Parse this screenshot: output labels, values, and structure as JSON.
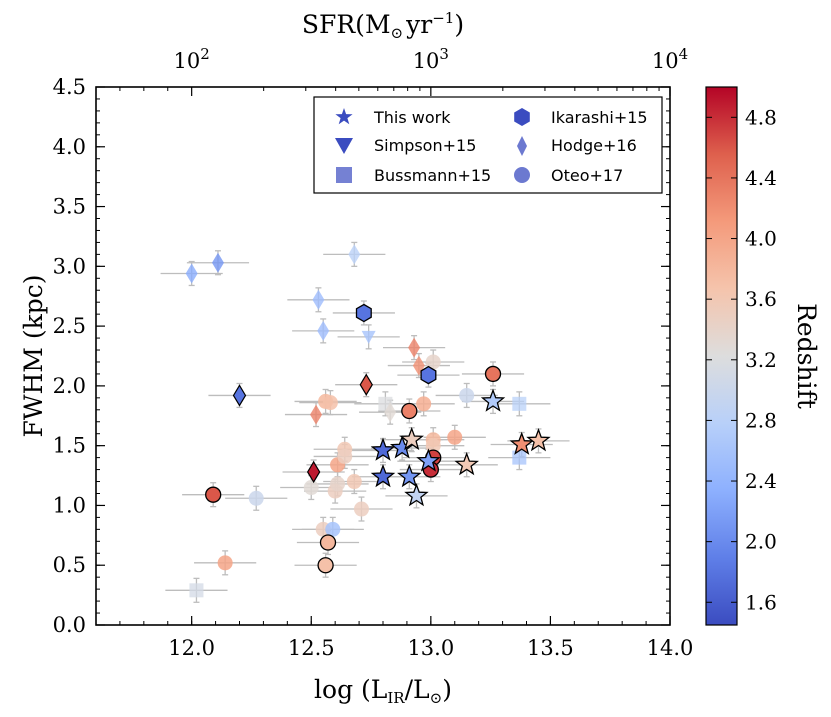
{
  "chart_data": {
    "type": "scatter",
    "xlabel": "log (L_IR/L_⊙)",
    "xlabel_parts": {
      "pre": "log (L",
      "sub": "IR",
      "mid": "/L",
      "sub2": "⊙",
      "post": ")"
    },
    "ylabel": "FWHM (kpc)",
    "top_xlabel": "SFR(M_⊙ yr^-1)",
    "top_xlabel_parts": {
      "pre": "SFR(M",
      "sub": "⊙",
      "mid": "yr",
      "sup": "−1",
      "post": ")"
    },
    "colorbar_label": "Redshift",
    "xlim": [
      11.6,
      14.0
    ],
    "ylim": [
      0.0,
      4.5
    ],
    "x_ticks": [
      12.0,
      12.5,
      13.0,
      13.5,
      14.0
    ],
    "x_tick_labels": [
      "12.0",
      "12.5",
      "13.0",
      "13.5",
      "14.0"
    ],
    "y_ticks": [
      0.0,
      0.5,
      1.0,
      1.5,
      2.0,
      2.5,
      3.0,
      3.5,
      4.0,
      4.5
    ],
    "y_tick_labels": [
      "0.0",
      "0.5",
      "1.0",
      "1.5",
      "2.0",
      "2.5",
      "3.0",
      "3.5",
      "4.0",
      "4.5"
    ],
    "top_ticks": [
      12.0,
      13.0,
      14.0
    ],
    "top_tick_base": [
      "10",
      "10",
      "10"
    ],
    "top_tick_exp": [
      "2",
      "3",
      "4"
    ],
    "colorbar_range": [
      1.45,
      5.0
    ],
    "colorbar_ticks": [
      1.6,
      2.0,
      2.4,
      2.8,
      3.2,
      3.6,
      4.0,
      4.4,
      4.8
    ],
    "colorbar_tick_labels": [
      "1.6",
      "2.0",
      "2.4",
      "2.8",
      "3.2",
      "3.6",
      "4.0",
      "4.4",
      "4.8"
    ],
    "legend": {
      "position": "top-right",
      "entries": [
        {
          "label": "This work",
          "marker": "star"
        },
        {
          "label": "Simpson+15",
          "marker": "triangle"
        },
        {
          "label": "Bussmann+15",
          "marker": "square"
        },
        {
          "label": "Ikarashi+15",
          "marker": "hexagon"
        },
        {
          "label": "Hodge+16",
          "marker": "diamond"
        },
        {
          "label": "Oteo+17",
          "marker": "circle"
        }
      ]
    },
    "series": [
      {
        "name": "This work",
        "marker": "star",
        "points": [
          {
            "x": 12.8,
            "y": 1.46,
            "z": 1.7
          },
          {
            "x": 12.88,
            "y": 1.48,
            "z": 2.0
          },
          {
            "x": 12.92,
            "y": 1.55,
            "z": 3.5
          },
          {
            "x": 12.8,
            "y": 1.24,
            "z": 1.7
          },
          {
            "x": 12.91,
            "y": 1.24,
            "z": 2.1
          },
          {
            "x": 12.99,
            "y": 1.37,
            "z": 2.2
          },
          {
            "x": 12.94,
            "y": 1.08,
            "z": 2.9
          },
          {
            "x": 13.26,
            "y": 1.87,
            "z": 2.7
          },
          {
            "x": 13.15,
            "y": 1.34,
            "z": 3.6
          },
          {
            "x": 13.38,
            "y": 1.51,
            "z": 4.2
          },
          {
            "x": 13.45,
            "y": 1.54,
            "z": 3.7
          }
        ]
      },
      {
        "name": "Simpson+15",
        "marker": "triangle",
        "points": [
          {
            "x": 12.74,
            "y": 2.41,
            "z": 2.6
          }
        ]
      },
      {
        "name": "Bussmann+15",
        "marker": "square",
        "points": [
          {
            "x": 12.02,
            "y": 0.29,
            "z": 3.1
          },
          {
            "x": 12.81,
            "y": 1.85,
            "z": 3.2
          },
          {
            "x": 13.37,
            "y": 1.85,
            "z": 2.8
          },
          {
            "x": 13.37,
            "y": 1.4,
            "z": 2.6
          }
        ]
      },
      {
        "name": "Ikarashi+15",
        "marker": "hexagon",
        "points": [
          {
            "x": 12.72,
            "y": 2.61,
            "z": 1.8
          },
          {
            "x": 12.99,
            "y": 2.09,
            "z": 1.8
          }
        ]
      },
      {
        "name": "Hodge+16",
        "marker": "diamond",
        "points": [
          {
            "x": 12.0,
            "y": 2.94,
            "z": 2.3
          },
          {
            "x": 12.11,
            "y": 3.03,
            "z": 2.1
          },
          {
            "x": 12.53,
            "y": 2.72,
            "z": 2.5
          },
          {
            "x": 12.55,
            "y": 2.46,
            "z": 2.5
          },
          {
            "x": 12.68,
            "y": 3.1,
            "z": 2.8
          },
          {
            "x": 12.2,
            "y": 1.92,
            "z": 1.8
          },
          {
            "x": 12.73,
            "y": 2.01,
            "z": 4.6
          },
          {
            "x": 12.93,
            "y": 2.32,
            "z": 4.3
          },
          {
            "x": 12.95,
            "y": 2.17,
            "z": 4.2
          },
          {
            "x": 12.52,
            "y": 1.76,
            "z": 4.3
          },
          {
            "x": 12.51,
            "y": 1.28,
            "z": 4.9
          },
          {
            "x": 12.83,
            "y": 1.78,
            "z": 3.3
          }
        ]
      },
      {
        "name": "Oteo+17",
        "marker": "circle",
        "points": [
          {
            "x": 12.09,
            "y": 1.09,
            "z": 4.6
          },
          {
            "x": 12.14,
            "y": 0.52,
            "z": 4.0
          },
          {
            "x": 12.27,
            "y": 1.06,
            "z": 3.0
          },
          {
            "x": 12.56,
            "y": 1.87,
            "z": 3.8
          },
          {
            "x": 12.58,
            "y": 1.86,
            "z": 3.7
          },
          {
            "x": 12.61,
            "y": 1.34,
            "z": 4.0
          },
          {
            "x": 12.6,
            "y": 1.12,
            "z": 3.5
          },
          {
            "x": 12.61,
            "y": 1.18,
            "z": 3.4
          },
          {
            "x": 12.64,
            "y": 1.47,
            "z": 3.6
          },
          {
            "x": 12.64,
            "y": 1.41,
            "z": 3.5
          },
          {
            "x": 12.68,
            "y": 1.2,
            "z": 3.6
          },
          {
            "x": 12.71,
            "y": 0.97,
            "z": 3.5
          },
          {
            "x": 12.55,
            "y": 0.8,
            "z": 3.5
          },
          {
            "x": 12.59,
            "y": 0.8,
            "z": 2.6
          },
          {
            "x": 12.57,
            "y": 0.69,
            "z": 3.8
          },
          {
            "x": 12.56,
            "y": 0.5,
            "z": 3.7
          },
          {
            "x": 12.91,
            "y": 1.79,
            "z": 4.3
          },
          {
            "x": 12.97,
            "y": 1.85,
            "z": 3.9
          },
          {
            "x": 13.01,
            "y": 2.2,
            "z": 3.4
          },
          {
            "x": 13.01,
            "y": 1.55,
            "z": 3.8
          },
          {
            "x": 13.01,
            "y": 1.5,
            "z": 3.6
          },
          {
            "x": 13.01,
            "y": 1.4,
            "z": 4.7
          },
          {
            "x": 13.0,
            "y": 1.3,
            "z": 4.8
          },
          {
            "x": 13.1,
            "y": 1.57,
            "z": 4.0
          },
          {
            "x": 13.15,
            "y": 1.92,
            "z": 3.0
          },
          {
            "x": 13.26,
            "y": 2.1,
            "z": 4.4
          },
          {
            "x": 12.5,
            "y": 1.15,
            "z": 3.3
          }
        ]
      }
    ]
  }
}
